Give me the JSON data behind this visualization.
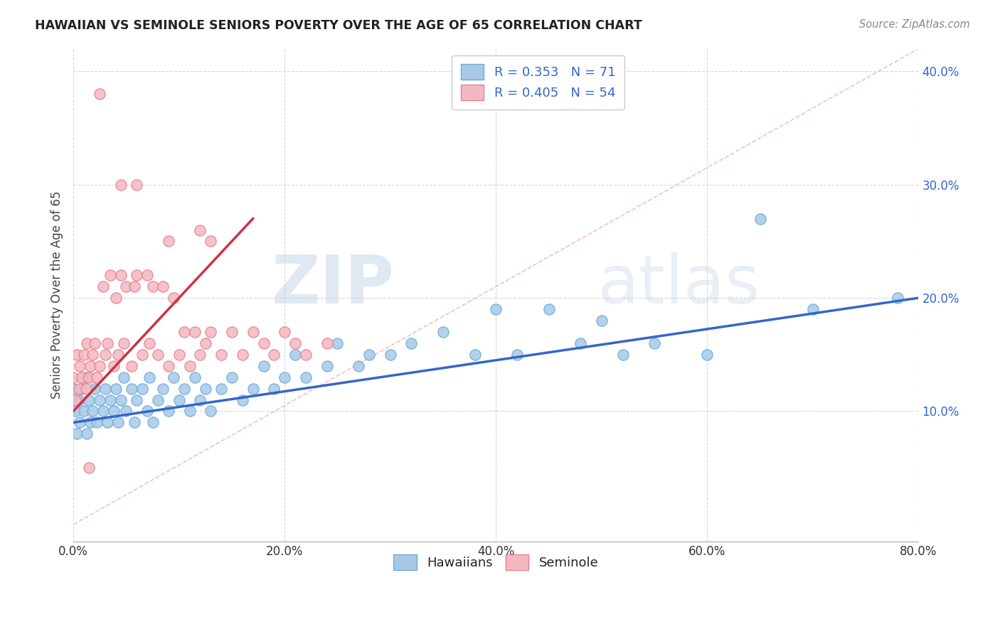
{
  "title": "HAWAIIAN VS SEMINOLE SENIORS POVERTY OVER THE AGE OF 65 CORRELATION CHART",
  "source": "Source: ZipAtlas.com",
  "ylabel": "Seniors Poverty Over the Age of 65",
  "xlim": [
    0.0,
    0.8
  ],
  "ylim": [
    -0.015,
    0.42
  ],
  "watermark_zip": "ZIP",
  "watermark_atlas": "atlas",
  "legend_r1": "R = 0.353",
  "legend_n1": "N = 71",
  "legend_r2": "R = 0.405",
  "legend_n2": "N = 54",
  "hawaiian_color": "#a8c8e8",
  "hawaiian_edge_color": "#6baed6",
  "seminole_color": "#f4b8c0",
  "seminole_edge_color": "#e88090",
  "hawaiian_line_color": "#3366cc",
  "seminole_line_color": "#cc3344",
  "diag_line_color": "#f4b8c0",
  "background_color": "#ffffff",
  "tick_color": "#3366cc",
  "grid_color": "#cccccc",
  "hawaiian_x": [
    0.0,
    0.002,
    0.003,
    0.005,
    0.006,
    0.008,
    0.01,
    0.012,
    0.013,
    0.015,
    0.016,
    0.018,
    0.02,
    0.022,
    0.025,
    0.028,
    0.03,
    0.032,
    0.035,
    0.038,
    0.04,
    0.042,
    0.045,
    0.048,
    0.05,
    0.055,
    0.058,
    0.06,
    0.065,
    0.07,
    0.072,
    0.075,
    0.08,
    0.085,
    0.09,
    0.095,
    0.1,
    0.105,
    0.11,
    0.115,
    0.12,
    0.125,
    0.13,
    0.14,
    0.15,
    0.16,
    0.17,
    0.18,
    0.19,
    0.2,
    0.21,
    0.22,
    0.24,
    0.25,
    0.27,
    0.28,
    0.3,
    0.32,
    0.35,
    0.38,
    0.4,
    0.42,
    0.45,
    0.48,
    0.5,
    0.52,
    0.55,
    0.6,
    0.65,
    0.7,
    0.78
  ],
  "hawaiian_y": [
    0.12,
    0.1,
    0.08,
    0.11,
    0.09,
    0.12,
    0.1,
    0.13,
    0.08,
    0.11,
    0.09,
    0.1,
    0.12,
    0.09,
    0.11,
    0.1,
    0.12,
    0.09,
    0.11,
    0.1,
    0.12,
    0.09,
    0.11,
    0.13,
    0.1,
    0.12,
    0.09,
    0.11,
    0.12,
    0.1,
    0.13,
    0.09,
    0.11,
    0.12,
    0.1,
    0.13,
    0.11,
    0.12,
    0.1,
    0.13,
    0.11,
    0.12,
    0.1,
    0.12,
    0.13,
    0.11,
    0.12,
    0.14,
    0.12,
    0.13,
    0.15,
    0.13,
    0.14,
    0.16,
    0.14,
    0.15,
    0.15,
    0.16,
    0.17,
    0.15,
    0.19,
    0.15,
    0.19,
    0.16,
    0.18,
    0.15,
    0.16,
    0.15,
    0.27,
    0.19,
    0.2
  ],
  "seminole_x": [
    0.0,
    0.002,
    0.003,
    0.005,
    0.006,
    0.008,
    0.01,
    0.012,
    0.013,
    0.015,
    0.016,
    0.018,
    0.02,
    0.022,
    0.025,
    0.028,
    0.03,
    0.032,
    0.035,
    0.038,
    0.04,
    0.042,
    0.045,
    0.048,
    0.05,
    0.055,
    0.058,
    0.06,
    0.065,
    0.07,
    0.072,
    0.075,
    0.08,
    0.085,
    0.09,
    0.095,
    0.1,
    0.105,
    0.11,
    0.115,
    0.12,
    0.125,
    0.13,
    0.14,
    0.15,
    0.16,
    0.17,
    0.18,
    0.19,
    0.2,
    0.21,
    0.22,
    0.24,
    0.015
  ],
  "seminole_y": [
    0.13,
    0.11,
    0.15,
    0.12,
    0.14,
    0.13,
    0.15,
    0.12,
    0.16,
    0.13,
    0.14,
    0.15,
    0.16,
    0.13,
    0.14,
    0.21,
    0.15,
    0.16,
    0.22,
    0.14,
    0.2,
    0.15,
    0.22,
    0.16,
    0.21,
    0.14,
    0.21,
    0.22,
    0.15,
    0.22,
    0.16,
    0.21,
    0.15,
    0.21,
    0.14,
    0.2,
    0.15,
    0.17,
    0.14,
    0.17,
    0.15,
    0.16,
    0.17,
    0.15,
    0.17,
    0.15,
    0.17,
    0.16,
    0.15,
    0.17,
    0.16,
    0.15,
    0.16,
    0.05
  ],
  "seminole_high_x": [
    0.025,
    0.045,
    0.06,
    0.09,
    0.12,
    0.13
  ],
  "seminole_high_y": [
    0.38,
    0.3,
    0.3,
    0.25,
    0.26,
    0.25
  ],
  "haw_trend_start_y": 0.09,
  "haw_trend_end_y": 0.2,
  "sem_trend_start_y": 0.1,
  "sem_trend_end_y": 0.27
}
